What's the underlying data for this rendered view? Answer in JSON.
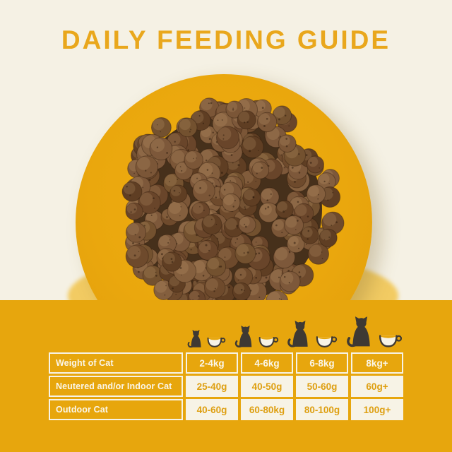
{
  "title": "DAILY FEEDING GUIDE",
  "colors": {
    "background_cream": "#F5F1E4",
    "band_gold": "#E7A60D",
    "title_gold": "#E9A71C",
    "table_cell_cream": "#F7F3E6",
    "value_text_gold": "#DE9F10",
    "icon_dark": "#3E3933",
    "kibble_brown": "#6E4A2C"
  },
  "icons": {
    "cat_sizes": [
      "cat-small-icon",
      "cat-medium-icon",
      "cat-large-icon",
      "cat-xlarge-icon"
    ],
    "bowl": "food-bowl-icon"
  },
  "feeding_table": {
    "header_label": "Weight of Cat",
    "columns": [
      "2-4kg",
      "4-6kg",
      "6-8kg",
      "8kg+"
    ],
    "rows": [
      {
        "label": "Neutered and/or Indoor Cat",
        "values": [
          "25-40g",
          "40-50g",
          "50-60g",
          "60g+"
        ]
      },
      {
        "label": "Outdoor Cat",
        "values": [
          "40-60g",
          "60-80kg",
          "80-100g",
          "100g+"
        ]
      }
    ]
  }
}
